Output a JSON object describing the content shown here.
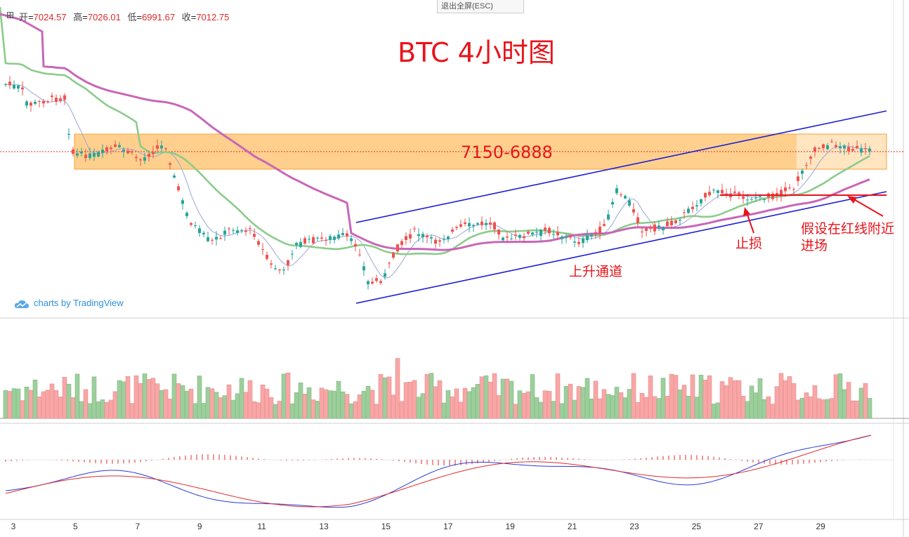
{
  "header": {
    "exit_fullscreen_label": "退出全屏(ESC)",
    "ohlc": [
      {
        "label": "开",
        "value": "7024.57"
      },
      {
        "label": "高",
        "value": "7026.01"
      },
      {
        "label": "低",
        "value": "6991.67"
      },
      {
        "label": "收",
        "value": "7012.75"
      }
    ]
  },
  "chart_data": {
    "type": "candlestick",
    "title": "BTC 4小时图",
    "zone": {
      "label": "7150-6888",
      "high": 7150,
      "low": 6888
    },
    "annotations": {
      "channel": "上升通道",
      "stop": "止损",
      "entry_line1": "假设在红线附近",
      "entry_line2": "进场"
    },
    "x_ticks": [
      "3",
      "5",
      "7",
      "9",
      "11",
      "13",
      "15",
      "17",
      "19",
      "21",
      "23",
      "25",
      "27",
      "29"
    ],
    "colors": {
      "up": "#26a69a",
      "down": "#ef5350",
      "vol_up": "#9ccf9c",
      "vol_down": "#f9a6a6",
      "zone": "#ffb347",
      "channel": "#1d1dd6",
      "ma_fast": "#9aa6d9",
      "ma_medium": "#8ccb8c",
      "ma_slow": "#c966b8",
      "macd_line": "#2b3bd6",
      "signal_line": "#e02b2b",
      "annotation": "#e8141b"
    }
  },
  "branding": {
    "text": "charts by TradingView"
  }
}
